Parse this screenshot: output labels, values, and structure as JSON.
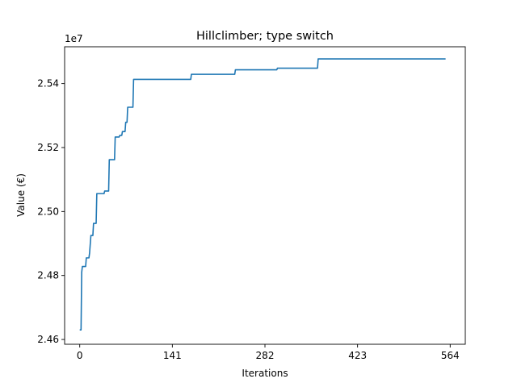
{
  "chart_data": {
    "type": "line",
    "title": "Hillclimber; type switch",
    "xlabel": "Iterations",
    "ylabel": "Value (€)",
    "y_offset_label": "1e7",
    "y_multiplier": 10000000,
    "xlim": [
      -23,
      587
    ],
    "ylim": [
      2.4585,
      2.5515
    ],
    "x_ticks": [
      0,
      141,
      282,
      423,
      564
    ],
    "y_ticks": [
      2.46,
      2.48,
      2.5,
      2.52,
      2.54
    ],
    "y_tick_labels": [
      "2.46",
      "2.48",
      "2.50",
      "2.52",
      "2.54"
    ],
    "grid": false,
    "line_color": "#1f77b4",
    "series": [
      {
        "x": [
          0,
          2,
          3,
          4,
          9,
          10,
          14,
          15,
          17,
          20,
          21,
          25,
          26,
          37,
          38,
          44,
          45,
          53,
          54,
          60,
          61,
          64,
          65,
          69,
          70,
          72,
          73,
          81,
          82,
          169,
          170,
          236,
          237,
          300,
          301,
          362,
          363,
          557
        ],
        "y": [
          2.463,
          2.463,
          2.481,
          2.4828,
          2.4828,
          2.4855,
          2.4855,
          2.487,
          2.4925,
          2.4925,
          2.4963,
          2.4963,
          2.5056,
          2.5056,
          2.5064,
          2.5064,
          2.5162,
          2.5162,
          2.5233,
          2.5233,
          2.5238,
          2.5238,
          2.525,
          2.525,
          2.5279,
          2.5279,
          2.5326,
          2.5326,
          2.5413,
          2.5413,
          2.5429,
          2.5429,
          2.5443,
          2.5443,
          2.5448,
          2.5448,
          2.5477,
          2.5477
        ]
      }
    ]
  }
}
